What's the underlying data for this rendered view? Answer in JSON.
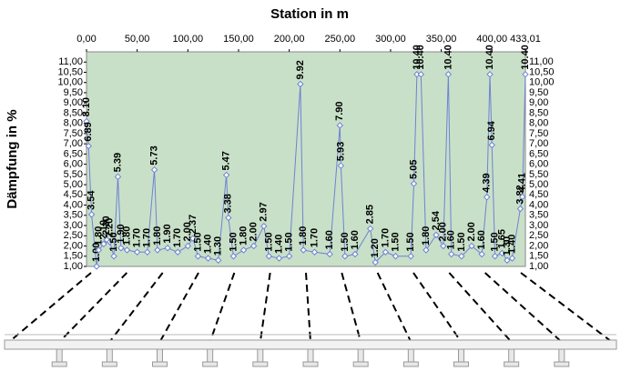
{
  "chart_data": {
    "type": "line",
    "title": "Station in m",
    "y_label": "Dämpfung in %",
    "xlim": [
      0,
      433.01
    ],
    "xticks": [
      {
        "value": 0,
        "label": "0,00"
      },
      {
        "value": 50,
        "label": "50,00"
      },
      {
        "value": 100,
        "label": "100,00"
      },
      {
        "value": 150,
        "label": "150,00"
      },
      {
        "value": 200,
        "label": "200,00"
      },
      {
        "value": 250,
        "label": "250,00"
      },
      {
        "value": 300,
        "label": "300,00"
      },
      {
        "value": 350,
        "label": "350,00"
      },
      {
        "value": 400,
        "label": "400,00"
      },
      {
        "value": 433.01,
        "label": "433,01"
      }
    ],
    "ylim": [
      1,
      11.5
    ],
    "yticks": [
      {
        "value": 1,
        "label": "1,00"
      },
      {
        "value": 1.5,
        "label": "1,50"
      },
      {
        "value": 2,
        "label": "2,00"
      },
      {
        "value": 2.5,
        "label": "2,50"
      },
      {
        "value": 3,
        "label": "3,00"
      },
      {
        "value": 3.5,
        "label": "3,50"
      },
      {
        "value": 4,
        "label": "4,00"
      },
      {
        "value": 4.5,
        "label": "4,50"
      },
      {
        "value": 5,
        "label": "5,00"
      },
      {
        "value": 5.5,
        "label": "5,50"
      },
      {
        "value": 6,
        "label": "6,00"
      },
      {
        "value": 6.5,
        "label": "6,50"
      },
      {
        "value": 7,
        "label": "7,00"
      },
      {
        "value": 7.5,
        "label": "7,50"
      },
      {
        "value": 8,
        "label": "8,00"
      },
      {
        "value": 8.5,
        "label": "8,50"
      },
      {
        "value": 9,
        "label": "9,00"
      },
      {
        "value": 9.5,
        "label": "9,50"
      },
      {
        "value": 10,
        "label": "10,00"
      },
      {
        "value": 10.5,
        "label": "10,50"
      },
      {
        "value": 11,
        "label": "11,00"
      }
    ],
    "background": "#c8e0c8",
    "series": [
      {
        "color": "#6f82d2",
        "x": [
          0,
          2,
          5,
          10,
          12,
          17,
          20,
          23,
          27,
          31,
          34,
          40,
          50,
          60,
          67,
          70,
          80,
          90,
          100,
          105,
          110,
          120,
          130,
          138,
          140,
          145,
          155,
          165,
          175,
          180,
          190,
          200,
          211,
          214,
          225,
          240,
          250,
          251,
          255,
          265,
          280,
          285,
          295,
          305,
          320,
          323,
          326,
          330,
          335,
          345,
          352,
          357,
          360,
          370,
          380,
          390,
          395,
          398,
          400,
          403,
          410,
          415,
          420,
          428,
          430,
          433
        ],
        "values": [
          8.1,
          6.89,
          3.54,
          1.0,
          1.8,
          2.1,
          2.3,
          2.2,
          1.5,
          5.39,
          1.9,
          1.8,
          1.7,
          1.7,
          5.73,
          1.8,
          1.9,
          1.7,
          2.0,
          2.37,
          1.5,
          1.4,
          1.3,
          5.47,
          3.38,
          1.5,
          1.8,
          2.0,
          2.97,
          1.5,
          1.4,
          1.5,
          9.92,
          1.8,
          1.7,
          1.6,
          7.9,
          5.93,
          1.5,
          1.6,
          2.85,
          1.2,
          1.7,
          1.5,
          1.5,
          5.05,
          10.4,
          10.4,
          1.8,
          2.54,
          2.0,
          10.4,
          1.6,
          1.5,
          2.0,
          1.6,
          4.39,
          10.4,
          6.94,
          1.5,
          1.65,
          1.3,
          1.4,
          3.82,
          4.41,
          10.4
        ],
        "value_labels": [
          "8.10",
          "6.89",
          "3.54",
          "1.00",
          "1.80",
          "2.10",
          "2.30",
          "2.20",
          "1.50",
          "5.39",
          "1.90",
          "1.80",
          "1.70",
          "1.70",
          "5.73",
          "1.80",
          "1.90",
          "1.70",
          "2.00",
          "2.37",
          "1.50",
          "1.40",
          "1.30",
          "5.47",
          "3.38",
          "1.50",
          "1.80",
          "2.00",
          "2.97",
          "1.50",
          "1.40",
          "1.50",
          "9.92",
          "1.80",
          "1.70",
          "1.60",
          "7.90",
          "5.93",
          "1.50",
          "1.60",
          "2.85",
          "1.20",
          "1.70",
          "1.50",
          "1.50",
          "5.05",
          "10.40",
          "10.40",
          "1.80",
          "2.54",
          "2.00",
          "10.40",
          "1.60",
          "1.50",
          "2.00",
          "1.60",
          "4.39",
          "10.40",
          "6.94",
          "1.50",
          "1.65",
          "1.30",
          "1.40",
          "3.82",
          "4.41",
          "10.40"
        ]
      }
    ]
  }
}
